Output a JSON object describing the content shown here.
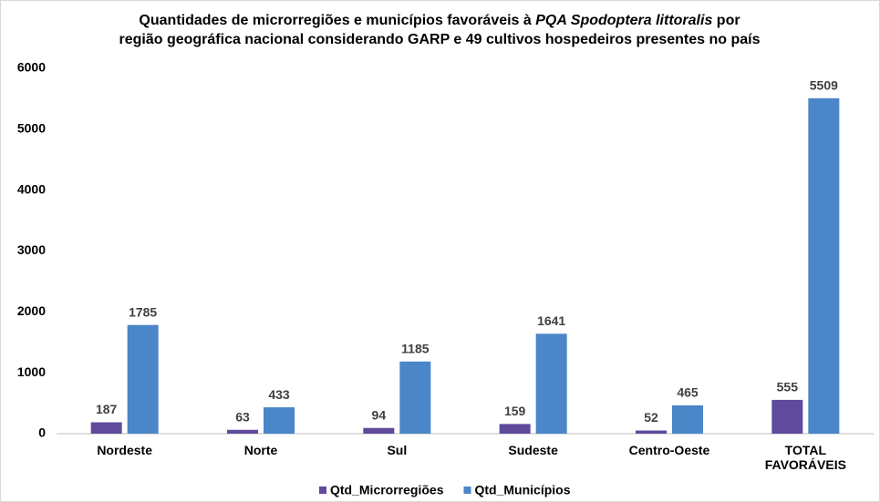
{
  "chart_data": {
    "type": "bar",
    "title": [
      [
        "Quantidades de microrregiões e municípios favoráveis à ",
        "PQA  Spodoptera littoralis",
        " por"
      ],
      [
        "região geográfica nacional considerando GARP e 49 cultivos hospedeiros presentes no país"
      ]
    ],
    "categories": [
      "Nordeste",
      "Norte",
      "Sul",
      "Sudeste",
      "Centro-Oeste",
      "TOTAL FAVORÁVEIS"
    ],
    "series": [
      {
        "name": "Qtd_Microrregiões",
        "color": "#5f4a9c",
        "values": [
          187,
          63,
          94,
          159,
          52,
          555
        ]
      },
      {
        "name": "Qtd_Municípios",
        "color": "#4a86c8",
        "values": [
          1785,
          433,
          1185,
          1641,
          465,
          5509
        ]
      }
    ],
    "ylim": [
      0,
      6000
    ],
    "yticks": [
      0,
      1000,
      2000,
      3000,
      4000,
      5000,
      6000
    ],
    "grid": false,
    "legend": "bottom"
  }
}
